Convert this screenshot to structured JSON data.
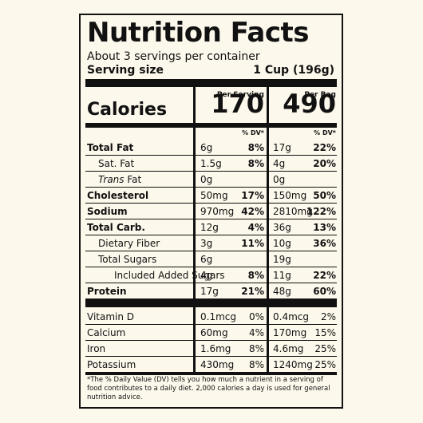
{
  "title": "Nutrition Facts",
  "servings_per_container": "About 3 servings per container",
  "serving_size": {
    "label": "Serving size",
    "value": "1 Cup (196g)"
  },
  "columns": {
    "per_serving": "Per Serving",
    "per_bag": "Per Bag",
    "dv_header": "% DV*"
  },
  "calories": {
    "label": "Calories",
    "per_serving": "170",
    "per_bag": "490"
  },
  "nutrients": [
    {
      "name": "Total Fat",
      "bold": true,
      "indent": 0,
      "s_amt": "6g",
      "s_pct": "8%",
      "b_amt": "17g",
      "b_pct": "22%"
    },
    {
      "name": "Sat. Fat",
      "bold": false,
      "indent": 1,
      "s_amt": "1.5g",
      "s_pct": "8%",
      "b_amt": "4g",
      "b_pct": "20%"
    },
    {
      "name": "Trans Fat",
      "bold": false,
      "indent": 1,
      "italic_prefix": "Trans",
      "s_amt": "0g",
      "s_pct": "",
      "b_amt": "0g",
      "b_pct": ""
    },
    {
      "name": "Cholesterol",
      "bold": true,
      "indent": 0,
      "s_amt": "50mg",
      "s_pct": "17%",
      "b_amt": "150mg",
      "b_pct": "50%"
    },
    {
      "name": "Sodium",
      "bold": true,
      "indent": 0,
      "s_amt": "970mg",
      "s_pct": "42%",
      "b_amt": "2810mg",
      "b_pct": "122%"
    },
    {
      "name": "Total Carb.",
      "bold": true,
      "indent": 0,
      "s_amt": "12g",
      "s_pct": "4%",
      "b_amt": "36g",
      "b_pct": "13%"
    },
    {
      "name": "Dietary Fiber",
      "bold": false,
      "indent": 1,
      "s_amt": "3g",
      "s_pct": "11%",
      "b_amt": "10g",
      "b_pct": "36%"
    },
    {
      "name": "Total Sugars",
      "bold": false,
      "indent": 1,
      "s_amt": "6g",
      "s_pct": "",
      "b_amt": "19g",
      "b_pct": ""
    },
    {
      "name": "Included Added Sugars",
      "bold": false,
      "indent": 2,
      "s_amt": "4g",
      "s_pct": "8%",
      "b_amt": "11g",
      "b_pct": "22%"
    },
    {
      "name": "Protein",
      "bold": true,
      "indent": 0,
      "s_amt": "17g",
      "s_pct": "21%",
      "b_amt": "48g",
      "b_pct": "60%"
    }
  ],
  "vitamins": [
    {
      "name": "Vitamin D",
      "s_amt": "0.1mcg",
      "s_pct": "0%",
      "b_amt": "0.4mcg",
      "b_pct": "2%"
    },
    {
      "name": "Calcium",
      "s_amt": "60mg",
      "s_pct": "4%",
      "b_amt": "170mg",
      "b_pct": "15%"
    },
    {
      "name": "Iron",
      "s_amt": "1.6mg",
      "s_pct": "8%",
      "b_amt": "4.6mg",
      "b_pct": "25%"
    },
    {
      "name": "Potassium",
      "s_amt": "430mg",
      "s_pct": "8%",
      "b_amt": "1240mg",
      "b_pct": "25%"
    }
  ],
  "footnote": "*The % Daily Value (DV) tells you how much a nutrient in a serving of food contributes to a daily diet. 2,000 calories a day is used for general nutrition advice."
}
